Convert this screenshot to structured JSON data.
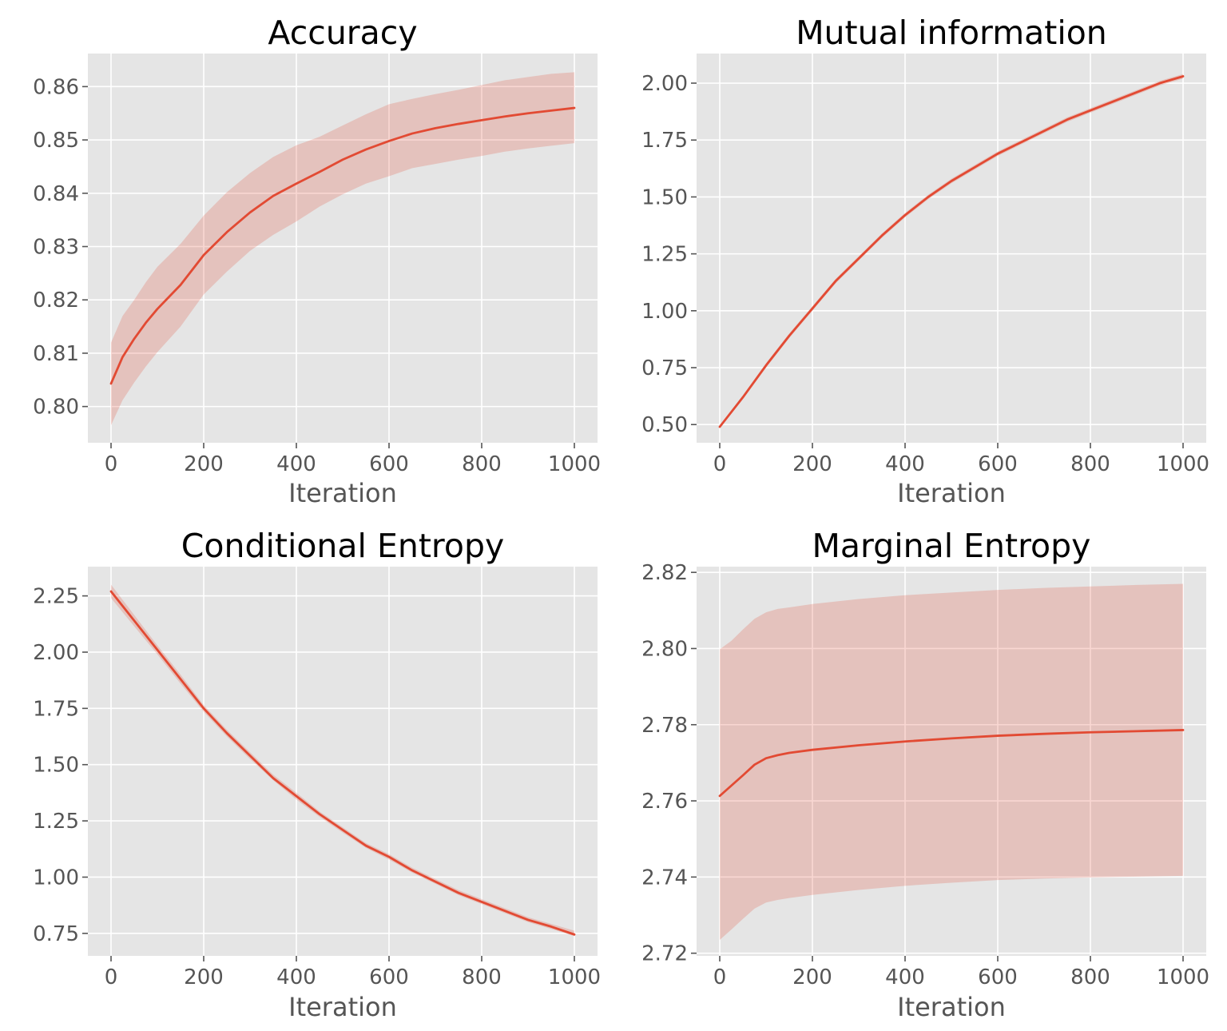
{
  "style": {
    "series_color": "#e24a33",
    "panel_color": "#e5e5e5",
    "grid_color": "#ffffff",
    "text_color": "#555555"
  },
  "chart_data": [
    {
      "type": "line",
      "title": "Accuracy",
      "xlabel": "Iteration",
      "ylabel": "",
      "xlim": [
        -50,
        1050
      ],
      "ylim": [
        0.7932,
        0.8662
      ],
      "xticks": [
        0,
        200,
        400,
        600,
        800,
        1000
      ],
      "yticks": [
        0.8,
        0.81,
        0.82,
        0.83,
        0.84,
        0.85,
        0.86
      ],
      "ytick_labels": [
        "0.80",
        "0.81",
        "0.82",
        "0.83",
        "0.84",
        "0.85",
        "0.86"
      ],
      "grid": true,
      "x": [
        0,
        25,
        50,
        75,
        100,
        150,
        200,
        250,
        300,
        350,
        400,
        450,
        500,
        550,
        600,
        650,
        700,
        750,
        800,
        850,
        900,
        950,
        1000
      ],
      "mean": [
        0.8043,
        0.8093,
        0.8127,
        0.8157,
        0.8183,
        0.8228,
        0.8284,
        0.8327,
        0.8364,
        0.8395,
        0.8418,
        0.844,
        0.8463,
        0.8482,
        0.8498,
        0.8512,
        0.8522,
        0.853,
        0.8537,
        0.8544,
        0.855,
        0.8555,
        0.856
      ],
      "lower": [
        0.7965,
        0.8012,
        0.8045,
        0.8075,
        0.8102,
        0.815,
        0.821,
        0.8253,
        0.8292,
        0.8322,
        0.8347,
        0.8375,
        0.8398,
        0.8418,
        0.8432,
        0.8447,
        0.8455,
        0.8463,
        0.847,
        0.8478,
        0.8484,
        0.8489,
        0.8494
      ],
      "upper": [
        0.812,
        0.817,
        0.82,
        0.8233,
        0.8262,
        0.8305,
        0.8358,
        0.8402,
        0.8438,
        0.8468,
        0.849,
        0.8506,
        0.8527,
        0.8548,
        0.8567,
        0.8577,
        0.8586,
        0.8594,
        0.8603,
        0.8612,
        0.8618,
        0.8624,
        0.8627
      ]
    },
    {
      "type": "line",
      "title": "Mutual information",
      "xlabel": "Iteration",
      "ylabel": "",
      "xlim": [
        -50,
        1050
      ],
      "ylim": [
        0.42,
        2.13
      ],
      "xticks": [
        0,
        200,
        400,
        600,
        800,
        1000
      ],
      "yticks": [
        0.5,
        0.75,
        1.0,
        1.25,
        1.5,
        1.75,
        2.0
      ],
      "ytick_labels": [
        "0.50",
        "0.75",
        "1.00",
        "1.25",
        "1.50",
        "1.75",
        "2.00"
      ],
      "grid": true,
      "x": [
        0,
        50,
        100,
        150,
        200,
        250,
        300,
        350,
        400,
        450,
        500,
        550,
        600,
        650,
        700,
        750,
        800,
        850,
        900,
        950,
        1000
      ],
      "mean": [
        0.49,
        0.62,
        0.76,
        0.89,
        1.01,
        1.13,
        1.23,
        1.33,
        1.42,
        1.5,
        1.57,
        1.63,
        1.69,
        1.74,
        1.79,
        1.84,
        1.88,
        1.92,
        1.96,
        2.0,
        2.03
      ],
      "lower": [
        0.485,
        0.612,
        0.75,
        0.88,
        1.0,
        1.12,
        1.22,
        1.32,
        1.41,
        1.49,
        1.56,
        1.62,
        1.68,
        1.73,
        1.78,
        1.83,
        1.87,
        1.91,
        1.95,
        1.99,
        2.02
      ],
      "upper": [
        0.495,
        0.628,
        0.77,
        0.9,
        1.02,
        1.14,
        1.24,
        1.34,
        1.43,
        1.51,
        1.58,
        1.64,
        1.7,
        1.75,
        1.8,
        1.85,
        1.89,
        1.93,
        1.97,
        2.01,
        2.04
      ]
    },
    {
      "type": "line",
      "title": "Conditional Entropy",
      "xlabel": "Iteration",
      "ylabel": "",
      "xlim": [
        -50,
        1050
      ],
      "ylim": [
        0.65,
        2.38
      ],
      "xticks": [
        0,
        200,
        400,
        600,
        800,
        1000
      ],
      "yticks": [
        0.75,
        1.0,
        1.25,
        1.5,
        1.75,
        2.0,
        2.25
      ],
      "ytick_labels": [
        "0.75",
        "1.00",
        "1.25",
        "1.50",
        "1.75",
        "2.00",
        "2.25"
      ],
      "grid": true,
      "x": [
        0,
        50,
        100,
        150,
        200,
        250,
        300,
        350,
        400,
        450,
        500,
        550,
        600,
        650,
        700,
        750,
        800,
        850,
        900,
        950,
        1000
      ],
      "mean": [
        2.27,
        2.14,
        2.01,
        1.88,
        1.75,
        1.64,
        1.54,
        1.44,
        1.36,
        1.28,
        1.21,
        1.14,
        1.09,
        1.03,
        0.98,
        0.93,
        0.89,
        0.85,
        0.81,
        0.78,
        0.745
      ],
      "lower": [
        2.24,
        2.115,
        1.99,
        1.86,
        1.735,
        1.625,
        1.525,
        1.43,
        1.345,
        1.268,
        1.198,
        1.13,
        1.078,
        1.02,
        0.97,
        0.92,
        0.88,
        0.84,
        0.8,
        0.77,
        0.738
      ],
      "upper": [
        2.3,
        2.165,
        2.03,
        1.9,
        1.765,
        1.655,
        1.555,
        1.455,
        1.375,
        1.292,
        1.222,
        1.152,
        1.102,
        1.042,
        0.992,
        0.942,
        0.902,
        0.862,
        0.822,
        0.792,
        0.762
      ]
    },
    {
      "type": "line",
      "title": "Marginal Entropy",
      "xlabel": "Iteration",
      "ylabel": "",
      "xlim": [
        -50,
        1050
      ],
      "ylim": [
        2.7193,
        2.8215
      ],
      "xticks": [
        0,
        200,
        400,
        600,
        800,
        1000
      ],
      "yticks": [
        2.72,
        2.74,
        2.76,
        2.78,
        2.8,
        2.82
      ],
      "ytick_labels": [
        "2.72",
        "2.74",
        "2.76",
        "2.78",
        "2.80",
        "2.82"
      ],
      "grid": true,
      "x": [
        0,
        25,
        50,
        75,
        100,
        125,
        150,
        200,
        300,
        400,
        500,
        600,
        700,
        800,
        900,
        1000
      ],
      "mean": [
        2.7613,
        2.764,
        2.7667,
        2.7695,
        2.7712,
        2.772,
        2.7726,
        2.7734,
        2.7746,
        2.7756,
        2.7764,
        2.7771,
        2.7776,
        2.778,
        2.7783,
        2.7786
      ],
      "lower": [
        2.7235,
        2.7262,
        2.729,
        2.7317,
        2.7333,
        2.734,
        2.7345,
        2.7353,
        2.7366,
        2.7377,
        2.7385,
        2.7392,
        2.7396,
        2.7399,
        2.7401,
        2.7403
      ],
      "upper": [
        2.7998,
        2.802,
        2.805,
        2.8078,
        2.8095,
        2.8104,
        2.8108,
        2.8117,
        2.813,
        2.814,
        2.8147,
        2.8154,
        2.8159,
        2.8163,
        2.8167,
        2.817
      ]
    }
  ]
}
